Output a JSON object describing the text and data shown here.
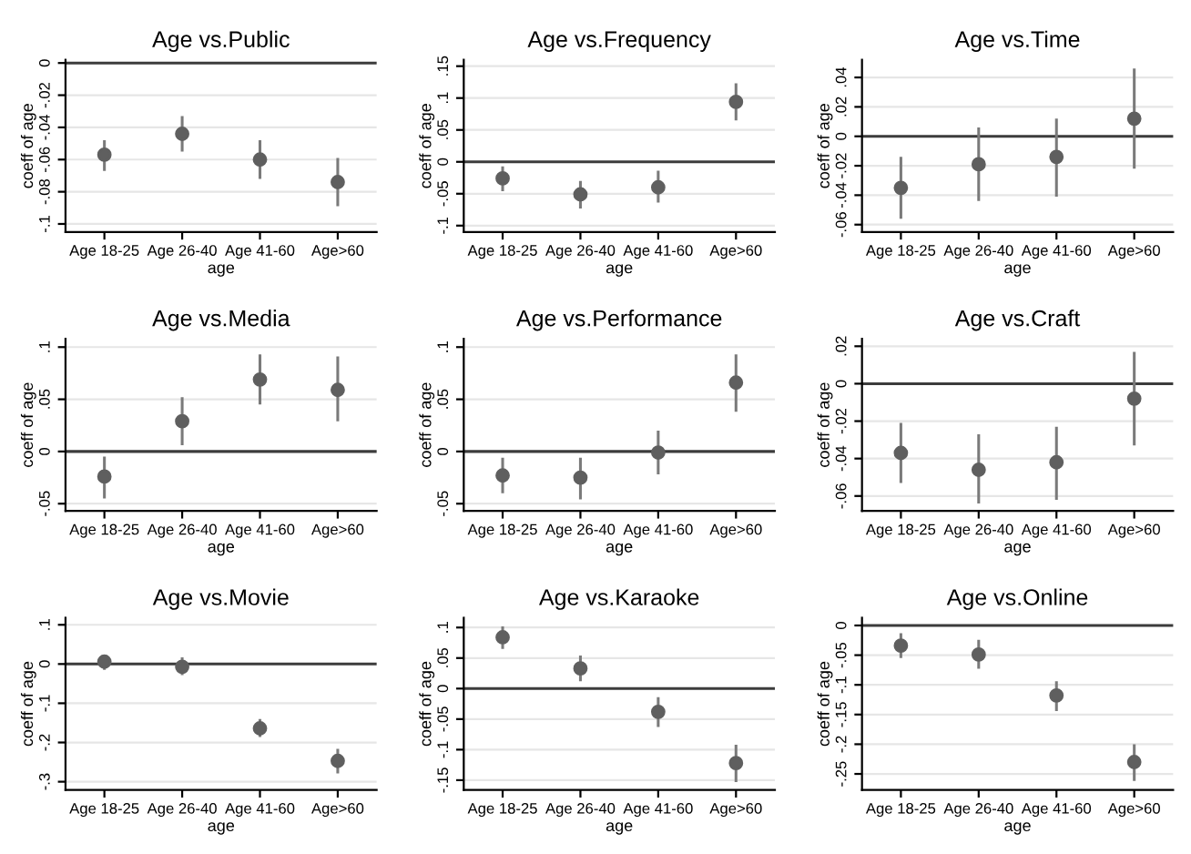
{
  "chart_data": [
    {
      "type": "scatter",
      "title": "Age vs.Public",
      "xlabel": "age",
      "ylabel": "coeff of age",
      "categories": [
        "Age 18-25",
        "Age 26-40",
        "Age 41-60",
        "Age>60"
      ],
      "series": [
        {
          "color": "#5f5f5f",
          "values": [
            -0.057,
            -0.044,
            -0.06,
            -0.074
          ],
          "errors": [
            [
              -0.067,
              -0.048
            ],
            [
              -0.055,
              -0.033
            ],
            [
              -0.072,
              -0.048
            ],
            [
              -0.089,
              -0.059
            ]
          ]
        }
      ],
      "ylim": [
        -0.105,
        0.002
      ],
      "yticks": [
        {
          "value": 0,
          "label": "0"
        },
        {
          "value": -0.02,
          "label": "-.02"
        },
        {
          "value": -0.04,
          "label": "-.04"
        },
        {
          "value": -0.06,
          "label": "-.06"
        },
        {
          "value": -0.08,
          "label": "-.08"
        },
        {
          "value": -0.1,
          "label": "-.1"
        }
      ],
      "ref_lines": [
        {
          "axis": "y",
          "value": 0,
          "color": "#3c3c3c"
        }
      ],
      "grid": "y",
      "marker": "circle"
    },
    {
      "type": "scatter",
      "title": "Age vs.Frequency",
      "xlabel": "age",
      "ylabel": "coeff of age",
      "categories": [
        "Age 18-25",
        "Age 26-40",
        "Age 41-60",
        "Age>60"
      ],
      "series": [
        {
          "color": "#5f5f5f",
          "values": [
            -0.026,
            -0.051,
            -0.04,
            0.094
          ],
          "errors": [
            [
              -0.046,
              -0.007
            ],
            [
              -0.073,
              -0.03
            ],
            [
              -0.064,
              -0.014
            ],
            [
              0.065,
              0.123
            ]
          ]
        }
      ],
      "ylim": [
        -0.11,
        0.16
      ],
      "yticks": [
        {
          "value": 0.15,
          "label": ".15"
        },
        {
          "value": 0.1,
          "label": ".1"
        },
        {
          "value": 0.05,
          "label": ".05"
        },
        {
          "value": 0,
          "label": "0"
        },
        {
          "value": -0.05,
          "label": "-.05"
        },
        {
          "value": -0.1,
          "label": "-.1"
        }
      ],
      "ref_lines": [
        {
          "axis": "y",
          "value": 0,
          "color": "#3c3c3c"
        }
      ],
      "grid": "y",
      "marker": "circle"
    },
    {
      "type": "scatter",
      "title": "Age vs.Time",
      "xlabel": "age",
      "ylabel": "coeff of age",
      "categories": [
        "Age 18-25",
        "Age 26-40",
        "Age 41-60",
        "Age>60"
      ],
      "series": [
        {
          "color": "#5f5f5f",
          "values": [
            -0.035,
            -0.019,
            -0.014,
            0.012
          ],
          "errors": [
            [
              -0.056,
              -0.014
            ],
            [
              -0.044,
              0.006
            ],
            [
              -0.041,
              0.012
            ],
            [
              -0.022,
              0.046
            ]
          ]
        }
      ],
      "ylim": [
        -0.065,
        0.052
      ],
      "yticks": [
        {
          "value": 0.04,
          "label": ".04"
        },
        {
          "value": 0.02,
          "label": ".02"
        },
        {
          "value": 0,
          "label": "0"
        },
        {
          "value": -0.02,
          "label": "-.02"
        },
        {
          "value": -0.04,
          "label": "-.04"
        },
        {
          "value": -0.06,
          "label": "-.06"
        }
      ],
      "ref_lines": [
        {
          "axis": "y",
          "value": 0,
          "color": "#3c3c3c"
        }
      ],
      "grid": "y",
      "marker": "circle"
    },
    {
      "type": "scatter",
      "title": "Age vs.Media",
      "xlabel": "age",
      "ylabel": "coeff of age",
      "categories": [
        "Age 18-25",
        "Age 26-40",
        "Age 41-60",
        "Age>60"
      ],
      "series": [
        {
          "color": "#5f5f5f",
          "values": [
            -0.024,
            0.029,
            0.069,
            0.059
          ],
          "errors": [
            [
              -0.045,
              -0.005
            ],
            [
              0.006,
              0.052
            ],
            [
              0.045,
              0.093
            ],
            [
              0.029,
              0.091
            ]
          ]
        }
      ],
      "ylim": [
        -0.057,
        0.108
      ],
      "yticks": [
        {
          "value": 0.1,
          "label": ".1"
        },
        {
          "value": 0.05,
          "label": ".05"
        },
        {
          "value": 0,
          "label": "0"
        },
        {
          "value": -0.05,
          "label": "-.05"
        }
      ],
      "ref_lines": [
        {
          "axis": "y",
          "value": 0,
          "color": "#3c3c3c"
        }
      ],
      "grid": "y",
      "marker": "circle"
    },
    {
      "type": "scatter",
      "title": "Age vs.Performance",
      "xlabel": "age",
      "ylabel": "coeff of age",
      "categories": [
        "Age 18-25",
        "Age 26-40",
        "Age 41-60",
        "Age>60"
      ],
      "series": [
        {
          "color": "#5f5f5f",
          "values": [
            -0.023,
            -0.025,
            -0.001,
            0.066
          ],
          "errors": [
            [
              -0.04,
              -0.006
            ],
            [
              -0.046,
              -0.006
            ],
            [
              -0.022,
              0.02
            ],
            [
              0.038,
              0.093
            ]
          ]
        }
      ],
      "ylim": [
        -0.057,
        0.108
      ],
      "yticks": [
        {
          "value": 0.1,
          "label": ".1"
        },
        {
          "value": 0.05,
          "label": ".05"
        },
        {
          "value": 0,
          "label": "0"
        },
        {
          "value": -0.05,
          "label": "-.05"
        }
      ],
      "ref_lines": [
        {
          "axis": "y",
          "value": 0,
          "color": "#3c3c3c"
        }
      ],
      "grid": "y",
      "marker": "circle"
    },
    {
      "type": "scatter",
      "title": "Age vs.Craft",
      "xlabel": "age",
      "ylabel": "coeff of age",
      "categories": [
        "Age 18-25",
        "Age 26-40",
        "Age 41-60",
        "Age>60"
      ],
      "series": [
        {
          "color": "#5f5f5f",
          "values": [
            -0.037,
            -0.046,
            -0.042,
            -0.008
          ],
          "errors": [
            [
              -0.053,
              -0.021
            ],
            [
              -0.064,
              -0.027
            ],
            [
              -0.062,
              -0.023
            ],
            [
              -0.033,
              0.017
            ]
          ]
        }
      ],
      "ylim": [
        -0.068,
        0.024
      ],
      "yticks": [
        {
          "value": 0.02,
          "label": ".02"
        },
        {
          "value": 0,
          "label": "0"
        },
        {
          "value": -0.02,
          "label": "-.02"
        },
        {
          "value": -0.04,
          "label": "-.04"
        },
        {
          "value": -0.06,
          "label": "-.06"
        }
      ],
      "ref_lines": [
        {
          "axis": "y",
          "value": 0,
          "color": "#3c3c3c"
        }
      ],
      "grid": "y",
      "marker": "circle"
    },
    {
      "type": "scatter",
      "title": "Age vs.Movie",
      "xlabel": "age",
      "ylabel": "coeff of age",
      "categories": [
        "Age 18-25",
        "Age 26-40",
        "Age 41-60",
        "Age>60"
      ],
      "series": [
        {
          "color": "#5f5f5f",
          "values": [
            0.006,
            -0.007,
            -0.164,
            -0.247
          ],
          "errors": [
            [
              -0.015,
              0.022
            ],
            [
              -0.028,
              0.017
            ],
            [
              -0.186,
              -0.14
            ],
            [
              -0.279,
              -0.216
            ]
          ]
        }
      ],
      "ylim": [
        -0.321,
        0.118
      ],
      "yticks": [
        {
          "value": 0.1,
          "label": ".1"
        },
        {
          "value": 0,
          "label": "0"
        },
        {
          "value": -0.1,
          "label": "-.1"
        },
        {
          "value": -0.2,
          "label": "-.2"
        },
        {
          "value": -0.3,
          "label": "-.3"
        }
      ],
      "ref_lines": [
        {
          "axis": "y",
          "value": 0,
          "color": "#3c3c3c"
        }
      ],
      "grid": "y",
      "marker": "circle"
    },
    {
      "type": "scatter",
      "title": "Age vs.Karaoke",
      "xlabel": "age",
      "ylabel": "coeff of age",
      "categories": [
        "Age 18-25",
        "Age 26-40",
        "Age 41-60",
        "Age>60"
      ],
      "series": [
        {
          "color": "#5f5f5f",
          "values": [
            0.084,
            0.033,
            -0.038,
            -0.122
          ],
          "errors": [
            [
              0.065,
              0.102
            ],
            [
              0.012,
              0.054
            ],
            [
              -0.063,
              -0.014
            ],
            [
              -0.153,
              -0.092
            ]
          ]
        }
      ],
      "ylim": [
        -0.166,
        0.116
      ],
      "yticks": [
        {
          "value": 0.1,
          "label": ".1"
        },
        {
          "value": 0.05,
          "label": ".05"
        },
        {
          "value": 0,
          "label": "0"
        },
        {
          "value": -0.05,
          "label": "-.05"
        },
        {
          "value": -0.1,
          "label": "-.1"
        },
        {
          "value": -0.15,
          "label": "-.15"
        }
      ],
      "ref_lines": [
        {
          "axis": "y",
          "value": 0,
          "color": "#3c3c3c"
        }
      ],
      "grid": "y",
      "marker": "circle"
    },
    {
      "type": "scatter",
      "title": "Age vs.Online",
      "xlabel": "age",
      "ylabel": "coeff of age",
      "categories": [
        "Age 18-25",
        "Age 26-40",
        "Age 41-60",
        "Age>60"
      ],
      "series": [
        {
          "color": "#5f5f5f",
          "values": [
            -0.034,
            -0.049,
            -0.118,
            -0.23
          ],
          "errors": [
            [
              -0.055,
              -0.013
            ],
            [
              -0.073,
              -0.024
            ],
            [
              -0.144,
              -0.094
            ],
            [
              -0.262,
              -0.2
            ]
          ]
        }
      ],
      "ylim": [
        -0.277,
        0.013
      ],
      "yticks": [
        {
          "value": 0,
          "label": "0"
        },
        {
          "value": -0.05,
          "label": "-.05"
        },
        {
          "value": -0.1,
          "label": "-.1"
        },
        {
          "value": -0.15,
          "label": "-.15"
        },
        {
          "value": -0.2,
          "label": "-.2"
        },
        {
          "value": -0.25,
          "label": "-.25"
        }
      ],
      "ref_lines": [
        {
          "axis": "y",
          "value": 0,
          "color": "#3c3c3c"
        }
      ],
      "grid": "y",
      "marker": "circle"
    }
  ]
}
